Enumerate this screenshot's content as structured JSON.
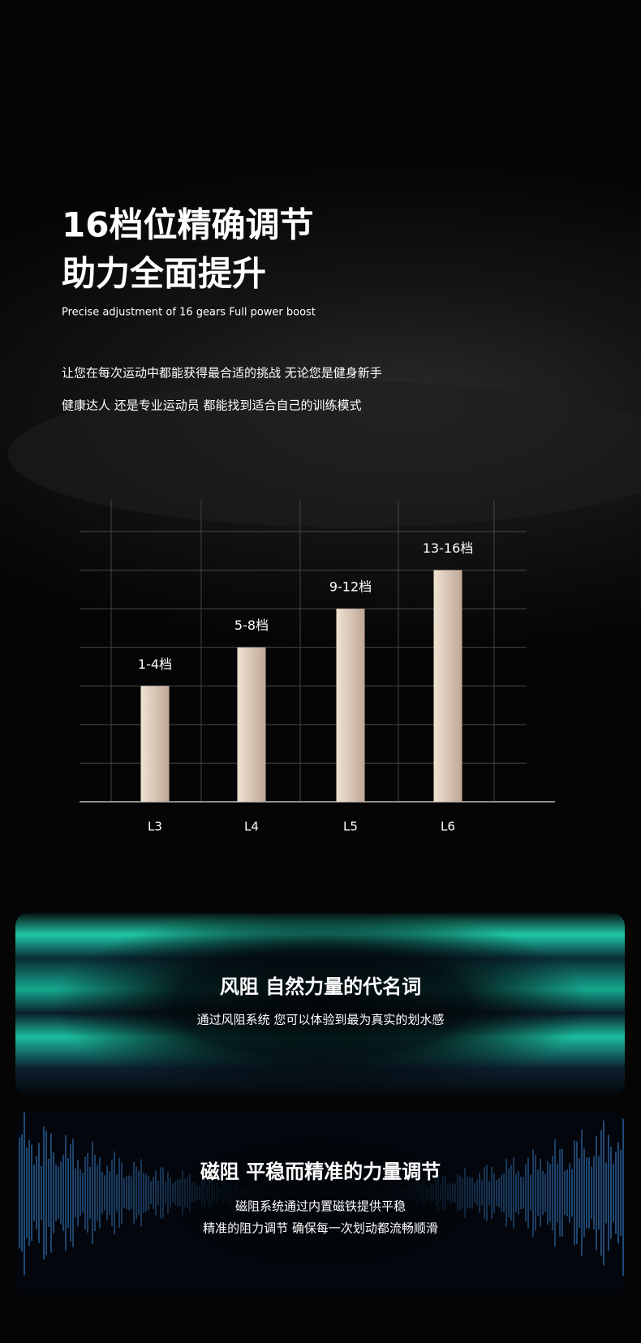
{
  "header": {
    "title_lines": [
      "16档位精确调节",
      "助力全面提升"
    ],
    "subtitle": "Precise adjustment of 16 gears Full power boost",
    "body_lines": [
      "让您在每次运动中都能获得最合适的挑战 无论您是健身新手",
      "健康达人 还是专业运动员 都能找到适合自己的训练模式"
    ]
  },
  "chart_data": {
    "type": "bar",
    "categories": [
      "L3",
      "L4",
      "L5",
      "L6"
    ],
    "values": [
      3,
      4,
      5,
      6
    ],
    "bar_labels": [
      "1-4档",
      "5-8档",
      "9-12档",
      "13-16档"
    ],
    "ylim": [
      0,
      7
    ],
    "yticks": [
      1,
      2,
      3,
      4,
      5,
      6,
      7
    ],
    "grid": true,
    "color": "#efe3d2"
  },
  "panels": [
    {
      "title": "风阻 自然力量的代名词",
      "lines": [
        "通过风阻系统 您可以体验到最为真实的划水感"
      ]
    },
    {
      "title": "磁阻 平稳而精准的力量调节",
      "lines": [
        "磁阻系统通过内置磁铁提供平稳",
        "精准的阻力调节 确保每一次划动都流畅顺滑"
      ]
    }
  ]
}
